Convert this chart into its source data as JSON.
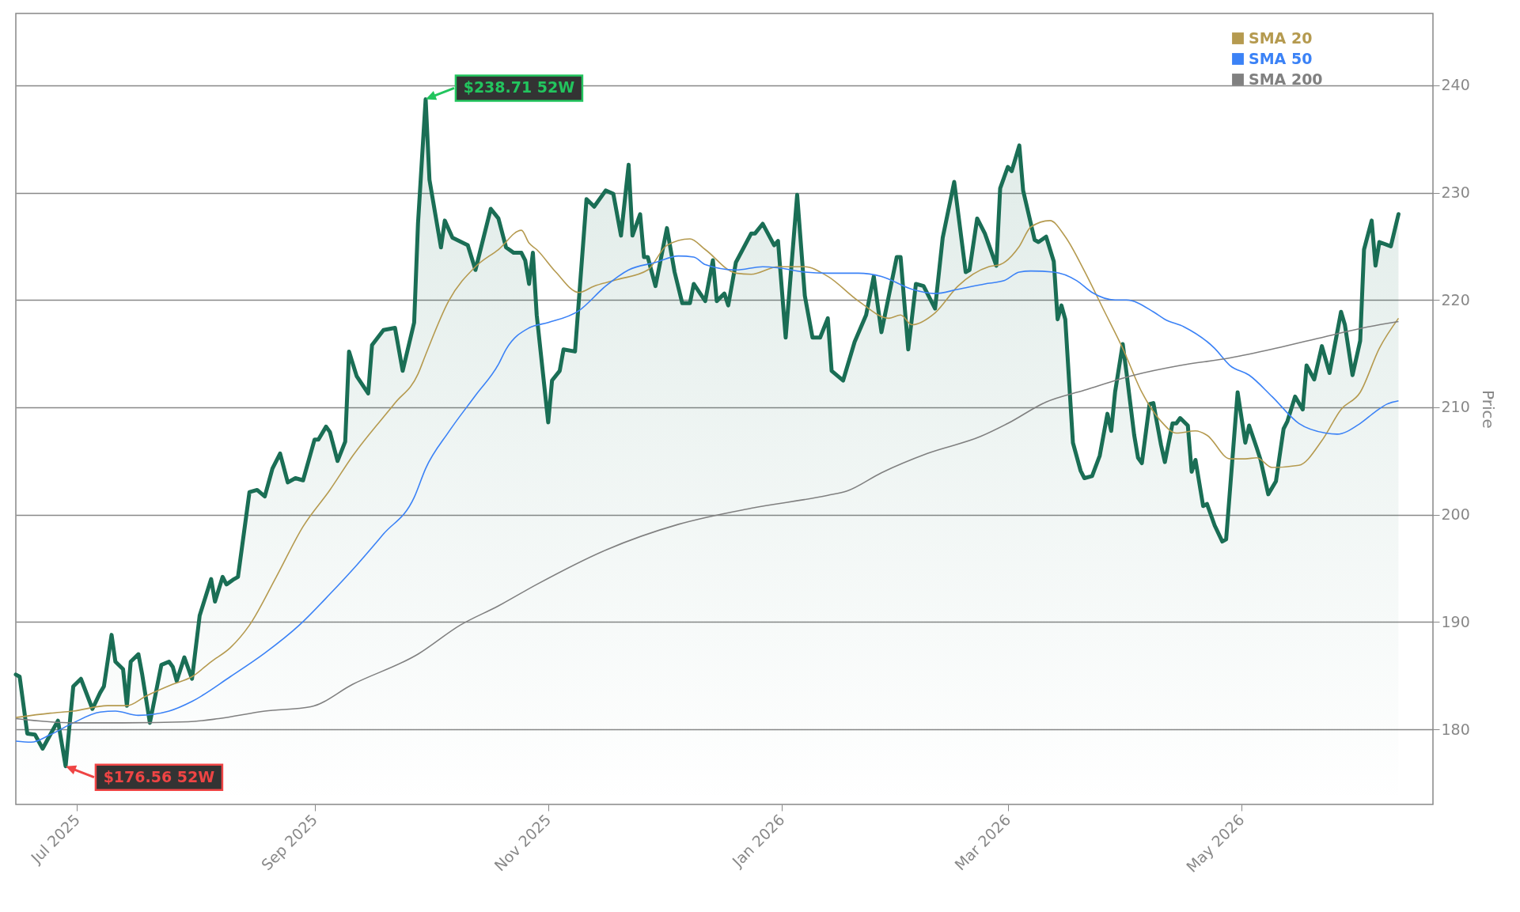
{
  "chart_data": {
    "type": "line",
    "ylabel": "Price",
    "xlim": [
      "2025-06-15",
      "2026-06-20"
    ],
    "ylim": [
      173,
      246.7
    ],
    "xticks": [
      {
        "value": "2025-07-01",
        "label": "Jul 2025"
      },
      {
        "value": "2025-09-01",
        "label": "Sep 2025"
      },
      {
        "value": "2025-11-01",
        "label": "Nov 2025"
      },
      {
        "value": "2026-01-01",
        "label": "Jan 2026"
      },
      {
        "value": "2026-03-01",
        "label": "Mar 2026"
      },
      {
        "value": "2026-05-01",
        "label": "May 2026"
      }
    ],
    "yticks": [
      180,
      190,
      200,
      210,
      220,
      230,
      240
    ],
    "grid": "y",
    "legend": "top right",
    "annotations": [
      {
        "text": "$238.71 52W",
        "x": "2025-09-30",
        "y": 238.71
      },
      {
        "text": "$176.56 52W",
        "x": "2025-06-28",
        "y": 176.56
      }
    ],
    "series": [
      {
        "type": "area",
        "color": "#1a6e55",
        "x": [
          "2025-06-15",
          "2025-06-16",
          "2025-06-18",
          "2025-06-20",
          "2025-06-22",
          "2025-06-24",
          "2025-06-26",
          "2025-06-28",
          "2025-06-30",
          "2025-07-02",
          "2025-07-05",
          "2025-07-07",
          "2025-07-08",
          "2025-07-10",
          "2025-07-11",
          "2025-07-13",
          "2025-07-14",
          "2025-07-15",
          "2025-07-17",
          "2025-07-18",
          "2025-07-20",
          "2025-07-23",
          "2025-07-25",
          "2025-07-26",
          "2025-07-27",
          "2025-07-29",
          "2025-07-31",
          "2025-08-02",
          "2025-08-05",
          "2025-08-06",
          "2025-08-08",
          "2025-08-09",
          "2025-08-11",
          "2025-08-12",
          "2025-08-15",
          "2025-08-17",
          "2025-08-19",
          "2025-08-21",
          "2025-08-23",
          "2025-08-25",
          "2025-08-27",
          "2025-08-29",
          "2025-09-01",
          "2025-09-02",
          "2025-09-04",
          "2025-09-05",
          "2025-09-07",
          "2025-09-09",
          "2025-09-10",
          "2025-09-12",
          "2025-09-15",
          "2025-09-16",
          "2025-09-19",
          "2025-09-22",
          "2025-09-24",
          "2025-09-27",
          "2025-09-28",
          "2025-09-30",
          "2025-10-01",
          "2025-10-04",
          "2025-10-05",
          "2025-10-07",
          "2025-10-11",
          "2025-10-13",
          "2025-10-17",
          "2025-10-19",
          "2025-10-21",
          "2025-10-23",
          "2025-10-25",
          "2025-10-26",
          "2025-10-27",
          "2025-10-28",
          "2025-10-29",
          "2025-11-01",
          "2025-11-02",
          "2025-11-04",
          "2025-11-05",
          "2025-11-08",
          "2025-11-11",
          "2025-11-13",
          "2025-11-16",
          "2025-11-18",
          "2025-11-20",
          "2025-11-22",
          "2025-11-23",
          "2025-11-25",
          "2025-11-26",
          "2025-11-27",
          "2025-11-29",
          "2025-12-02",
          "2025-12-04",
          "2025-12-06",
          "2025-12-08",
          "2025-12-09",
          "2025-12-12",
          "2025-12-14",
          "2025-12-15",
          "2025-12-17",
          "2025-12-18",
          "2025-12-20",
          "2025-12-24",
          "2025-12-25",
          "2025-12-27",
          "2025-12-30",
          "2025-12-31",
          "2026-01-02",
          "2026-01-05",
          "2026-01-07",
          "2026-01-09",
          "2026-01-11",
          "2026-01-13",
          "2026-01-14",
          "2026-01-17",
          "2026-01-20",
          "2026-01-23",
          "2026-01-25",
          "2026-01-27",
          "2026-01-31",
          "2026-02-01",
          "2026-02-03",
          "2026-02-05",
          "2026-02-07",
          "2026-02-10",
          "2026-02-12",
          "2026-02-15",
          "2026-02-18",
          "2026-02-19",
          "2026-02-21",
          "2026-02-23",
          "2026-02-26",
          "2026-02-27",
          "2026-03-01",
          "2026-03-02",
          "2026-03-04",
          "2026-03-05",
          "2026-03-08",
          "2026-03-09",
          "2026-03-11",
          "2026-03-13",
          "2026-03-14",
          "2026-03-15",
          "2026-03-16",
          "2026-03-18",
          "2026-03-20",
          "2026-03-21",
          "2026-03-23",
          "2026-03-25",
          "2026-03-27",
          "2026-03-28",
          "2026-03-29",
          "2026-03-31",
          "2026-04-01",
          "2026-04-03",
          "2026-04-04",
          "2026-04-05",
          "2026-04-07",
          "2026-04-08",
          "2026-04-10",
          "2026-04-11",
          "2026-04-13",
          "2026-04-14",
          "2026-04-15",
          "2026-04-17",
          "2026-04-18",
          "2026-04-19",
          "2026-04-21",
          "2026-04-22",
          "2026-04-24",
          "2026-04-26",
          "2026-04-27",
          "2026-04-30",
          "2026-05-02",
          "2026-05-03",
          "2026-05-05",
          "2026-05-06",
          "2026-05-08",
          "2026-05-10",
          "2026-05-12",
          "2026-05-13",
          "2026-05-15",
          "2026-05-17",
          "2026-05-18",
          "2026-05-20",
          "2026-05-22",
          "2026-05-24",
          "2026-05-27",
          "2026-05-28",
          "2026-05-30",
          "2026-06-01",
          "2026-06-02",
          "2026-06-04",
          "2026-06-05",
          "2026-06-06",
          "2026-06-09",
          "2026-06-11"
        ],
        "values": [
          185.1,
          184.9,
          179.6,
          179.5,
          178.2,
          179.5,
          180.8,
          176.56,
          184.0,
          184.7,
          181.9,
          183.4,
          184.0,
          188.8,
          186.3,
          185.6,
          182.2,
          186.3,
          187.0,
          185.1,
          180.6,
          186.0,
          186.3,
          185.8,
          184.5,
          186.7,
          184.7,
          190.6,
          194.0,
          191.9,
          194.2,
          193.5,
          194.0,
          194.2,
          202.1,
          202.3,
          201.7,
          204.3,
          205.7,
          203.0,
          203.4,
          203.2,
          207.0,
          207.0,
          208.2,
          207.7,
          205.0,
          206.8,
          215.2,
          212.9,
          211.3,
          215.8,
          217.2,
          217.4,
          213.4,
          217.9,
          227.1,
          238.71,
          231.2,
          224.9,
          227.4,
          225.8,
          225.1,
          222.8,
          228.5,
          227.6,
          224.9,
          224.4,
          224.4,
          223.7,
          221.5,
          224.4,
          218.6,
          208.6,
          212.5,
          213.4,
          215.4,
          215.2,
          229.4,
          228.7,
          230.2,
          229.9,
          226.0,
          232.6,
          226.0,
          228.0,
          224.0,
          224.0,
          221.3,
          226.7,
          222.6,
          219.7,
          219.7,
          221.5,
          219.9,
          223.7,
          219.9,
          220.6,
          219.5,
          223.5,
          226.2,
          226.2,
          227.1,
          225.1,
          225.5,
          216.5,
          229.8,
          220.4,
          216.5,
          216.5,
          218.3,
          213.4,
          212.5,
          216.1,
          218.6,
          222.2,
          217.0,
          224.0,
          224.0,
          215.4,
          221.5,
          221.3,
          219.2,
          225.8,
          231.0,
          222.6,
          222.8,
          227.6,
          226.2,
          223.2,
          230.4,
          232.4,
          232.0,
          234.4,
          230.2,
          225.6,
          225.4,
          225.9,
          223.6,
          218.2,
          219.5,
          218.2,
          206.7,
          204.1,
          203.4,
          203.6,
          205.5,
          209.4,
          207.8,
          211.4,
          215.9,
          213.2,
          207.4,
          205.3,
          204.8,
          210.3,
          210.4,
          206.5,
          204.9,
          208.5,
          208.5,
          209.0,
          208.3,
          204.0,
          205.1,
          200.8,
          201.0,
          199.0,
          197.5,
          197.7,
          211.4,
          206.7,
          208.3,
          206.2,
          205.1,
          201.9,
          203.1,
          208.0,
          208.7,
          211.0,
          209.8,
          213.9,
          212.6,
          215.7,
          213.2,
          218.9,
          217.7,
          213.0,
          216.2,
          224.7,
          227.4,
          223.2,
          225.4,
          225.0,
          228.0
        ]
      },
      {
        "type": "line",
        "name": "SMA 20",
        "color": "#b59a4f",
        "x": [
          "2025-06-15",
          "2025-06-24",
          "2025-06-30",
          "2025-07-09",
          "2025-07-14",
          "2025-07-19",
          "2025-07-26",
          "2025-07-31",
          "2025-08-05",
          "2025-08-10",
          "2025-08-15",
          "2025-08-22",
          "2025-08-29",
          "2025-09-05",
          "2025-09-11",
          "2025-09-22",
          "2025-09-28",
          "2025-09-30",
          "2025-10-06",
          "2025-10-13",
          "2025-10-19",
          "2025-10-25",
          "2025-10-27",
          "2025-10-29",
          "2025-11-03",
          "2025-11-09",
          "2025-11-13",
          "2025-11-19",
          "2025-11-27",
          "2025-12-02",
          "2025-12-08",
          "2025-12-12",
          "2025-12-20",
          "2025-12-24",
          "2025-12-31",
          "2026-01-07",
          "2026-01-13",
          "2026-01-21",
          "2026-01-29",
          "2026-02-01",
          "2026-02-04",
          "2026-02-10",
          "2026-02-16",
          "2026-02-24",
          "2026-02-27",
          "2026-03-04",
          "2026-03-07",
          "2026-03-12",
          "2026-03-16",
          "2026-03-21",
          "2026-03-26",
          "2026-03-31",
          "2026-04-05",
          "2026-04-10",
          "2026-04-14",
          "2026-04-19",
          "2026-04-22",
          "2026-04-28",
          "2026-05-02",
          "2026-05-05",
          "2026-05-09",
          "2026-05-16",
          "2026-05-22",
          "2026-05-27",
          "2026-06-01",
          "2026-06-06",
          "2026-06-11"
        ],
        "values": [
          181.1,
          181.5,
          181.7,
          182.2,
          182.2,
          183.1,
          184.2,
          184.9,
          186.3,
          187.6,
          189.7,
          194.2,
          198.9,
          202.3,
          205.5,
          210.4,
          213.1,
          214.9,
          219.9,
          223.1,
          224.7,
          226.5,
          225.3,
          224.7,
          222.6,
          220.7,
          221.3,
          221.9,
          222.8,
          225.1,
          225.7,
          224.7,
          222.5,
          222.4,
          223.1,
          223.1,
          222.2,
          219.9,
          218.3,
          218.6,
          217.7,
          218.8,
          221.3,
          223.1,
          223.3,
          225.0,
          226.8,
          227.4,
          225.9,
          222.7,
          219.1,
          215.5,
          211.4,
          208.7,
          207.6,
          207.8,
          207.4,
          205.2,
          205.2,
          205.3,
          204.4,
          204.6,
          206.9,
          209.8,
          211.4,
          215.5,
          218.3
        ]
      },
      {
        "type": "line",
        "name": "SMA 50",
        "color": "#3b82f6",
        "x": [
          "2025-06-15",
          "2025-06-19",
          "2025-06-24",
          "2025-06-30",
          "2025-07-07",
          "2025-07-11",
          "2025-07-17",
          "2025-07-25",
          "2025-07-31",
          "2025-08-10",
          "2025-08-19",
          "2025-08-28",
          "2025-09-05",
          "2025-09-12",
          "2025-09-19",
          "2025-09-27",
          "2025-09-30",
          "2025-10-06",
          "2025-10-13",
          "2025-10-19",
          "2025-10-21",
          "2025-10-27",
          "2025-11-01",
          "2025-11-09",
          "2025-11-16",
          "2025-11-22",
          "2025-11-29",
          "2025-12-05",
          "2025-12-09",
          "2025-12-12",
          "2025-12-20",
          "2025-12-27",
          "2025-12-31",
          "2026-01-07",
          "2026-01-13",
          "2026-01-21",
          "2026-01-27",
          "2026-02-04",
          "2026-02-10",
          "2026-02-16",
          "2026-02-23",
          "2026-02-28",
          "2026-03-04",
          "2026-03-07",
          "2026-03-13",
          "2026-03-19",
          "2026-03-23",
          "2026-03-29",
          "2026-04-01",
          "2026-04-08",
          "2026-04-11",
          "2026-04-16",
          "2026-04-24",
          "2026-04-28",
          "2026-05-03",
          "2026-05-09",
          "2026-05-16",
          "2026-05-23",
          "2026-05-26",
          "2026-06-01",
          "2026-06-05",
          "2026-06-08",
          "2026-06-11"
        ],
        "values": [
          178.9,
          178.8,
          179.5,
          180.6,
          181.6,
          181.7,
          181.3,
          181.7,
          182.6,
          184.9,
          187.1,
          189.7,
          192.6,
          195.3,
          198.2,
          201.6,
          204.3,
          207.7,
          211.1,
          214.0,
          215.4,
          217.4,
          217.9,
          219.0,
          221.3,
          222.8,
          223.5,
          224.1,
          224.0,
          223.3,
          222.8,
          223.1,
          223.0,
          222.6,
          222.5,
          222.5,
          222.2,
          221.0,
          220.6,
          221.0,
          221.5,
          221.8,
          222.6,
          222.7,
          222.6,
          221.8,
          220.7,
          220.0,
          220.0,
          218.9,
          218.2,
          217.5,
          215.5,
          213.9,
          213.0,
          211.0,
          208.5,
          207.6,
          207.5,
          208.5,
          209.6,
          210.3,
          210.6
        ]
      },
      {
        "type": "line",
        "name": "SMA 200",
        "color": "#808080",
        "x": [
          "2025-06-15",
          "2025-06-30",
          "2025-07-13",
          "2025-07-30",
          "2025-08-07",
          "2025-08-19",
          "2025-08-31",
          "2025-09-11",
          "2025-09-28",
          "2025-10-09",
          "2025-10-19",
          "2025-10-29",
          "2025-11-16",
          "2025-12-05",
          "2025-12-24",
          "2026-01-13",
          "2026-01-18",
          "2026-01-27",
          "2026-02-08",
          "2026-02-22",
          "2026-03-01",
          "2026-03-11",
          "2026-03-21",
          "2026-04-03",
          "2026-04-15",
          "2026-04-28",
          "2026-05-10",
          "2026-05-23",
          "2026-06-03",
          "2026-06-11"
        ],
        "values": [
          181.0,
          180.6,
          180.6,
          180.7,
          181.0,
          181.7,
          182.1,
          184.2,
          187.0,
          189.7,
          191.5,
          193.5,
          196.7,
          199.1,
          200.6,
          201.8,
          202.2,
          203.9,
          205.7,
          207.3,
          208.5,
          210.5,
          211.6,
          213.0,
          213.9,
          214.6,
          215.5,
          216.6,
          217.5,
          218.0
        ]
      }
    ]
  }
}
